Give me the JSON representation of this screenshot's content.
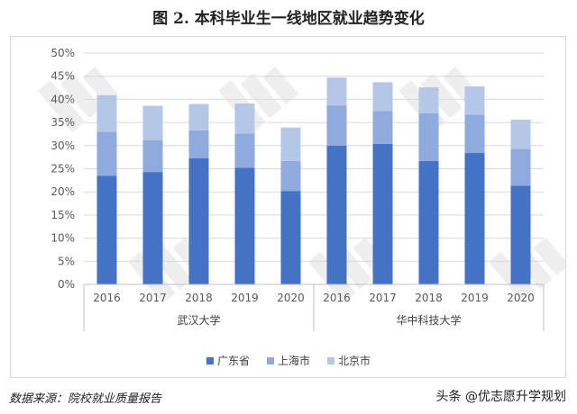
{
  "title": "图 2. 本科毕业生一线地区就业趋势变化",
  "source": "数据来源：院校就业质量报告",
  "brand": "头条 @优志愿升学规划",
  "chart_data": {
    "type": "bar",
    "stacked": true,
    "groups": [
      {
        "name": "武汉大学",
        "categories": [
          "2016",
          "2017",
          "2018",
          "2019",
          "2020"
        ]
      },
      {
        "name": "华中科技大学",
        "categories": [
          "2016",
          "2017",
          "2018",
          "2019",
          "2020"
        ]
      }
    ],
    "series": [
      {
        "name": "广东省",
        "color": "#4472c4",
        "values": [
          23.5,
          24.3,
          27.3,
          25.2,
          20.2,
          30.0,
          30.4,
          26.7,
          28.4,
          21.3
        ]
      },
      {
        "name": "上海市",
        "color": "#8faadc",
        "values": [
          9.5,
          6.9,
          6.0,
          7.4,
          6.5,
          8.7,
          7.1,
          10.3,
          8.3,
          8.0
        ]
      },
      {
        "name": "北京市",
        "color": "#b4c7e7",
        "values": [
          7.9,
          7.4,
          5.7,
          6.5,
          7.2,
          6.0,
          6.2,
          5.6,
          6.1,
          6.3
        ]
      }
    ],
    "ylim": [
      0,
      50
    ],
    "yticks": [
      "0%",
      "5%",
      "10%",
      "15%",
      "20%",
      "25%",
      "30%",
      "35%",
      "40%",
      "45%",
      "50%"
    ],
    "grid": true,
    "legend": "bottom"
  }
}
